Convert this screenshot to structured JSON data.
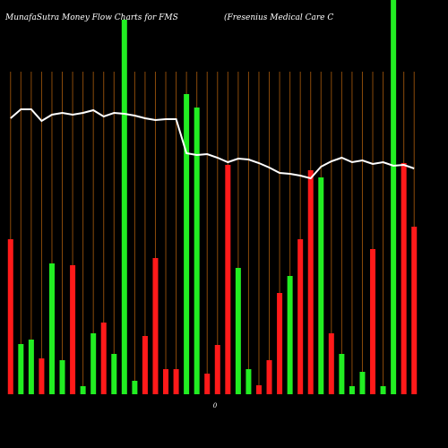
{
  "chart_data": {
    "type": "bar",
    "title": "MunafaSutra  Money Flow  Charts for FMS",
    "subtitle": "(Fresenius Medical Care  C",
    "zero_label": "0",
    "background": "#000000",
    "grid_color": "#8a4a0a",
    "ylim": [
      0,
      440
    ],
    "values": [
      173,
      56,
      61,
      40,
      146,
      38,
      144,
      9,
      68,
      80,
      45,
      418,
      15,
      65,
      152,
      28,
      28,
      335,
      320,
      23,
      55,
      256,
      141,
      28,
      10,
      38,
      113,
      132,
      173,
      250,
      242,
      68,
      45,
      9,
      25,
      162,
      9,
      440,
      258,
      187
    ],
    "colors": [
      "#ff1a1a",
      "#22ee22",
      "#22ee22",
      "#ff1a1a",
      "#22ee22",
      "#22ee22",
      "#ff1a1a",
      "#22ee22",
      "#22ee22",
      "#ff1a1a",
      "#22ee22",
      "#22ee22",
      "#22ee22",
      "#ff1a1a",
      "#ff1a1a",
      "#ff1a1a",
      "#ff1a1a",
      "#22ee22",
      "#22ee22",
      "#ff1a1a",
      "#ff1a1a",
      "#ff1a1a",
      "#22ee22",
      "#22ee22",
      "#ff1a1a",
      "#ff1a1a",
      "#ff1a1a",
      "#22ee22",
      "#ff1a1a",
      "#ff1a1a",
      "#22ee22",
      "#ff1a1a",
      "#22ee22",
      "#22ee22",
      "#22ee22",
      "#ff1a1a",
      "#22ee22",
      "#22ee22",
      "#ff1a1a",
      "#ff1a1a"
    ],
    "line": {
      "color": "#ffffff",
      "values": [
        308,
        318,
        318,
        305,
        312,
        314,
        312,
        314,
        317,
        310,
        314,
        313,
        311,
        308,
        306,
        307,
        307,
        269,
        267,
        268,
        264,
        259,
        263,
        262,
        258,
        253,
        247,
        246,
        244,
        241,
        254,
        260,
        264,
        259,
        261,
        257,
        259,
        255,
        256,
        252
      ]
    }
  }
}
